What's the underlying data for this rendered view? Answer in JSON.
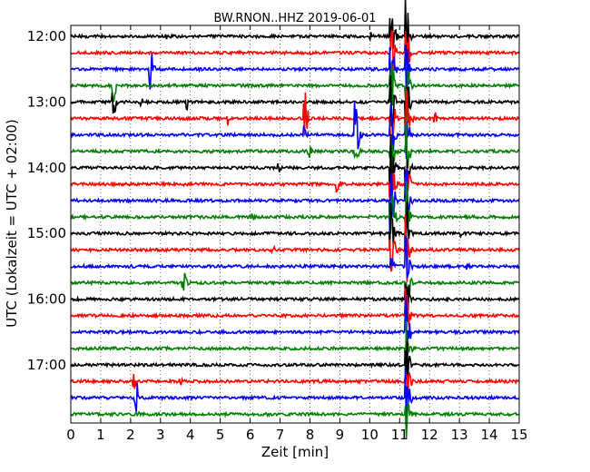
{
  "chart_data": {
    "type": "line",
    "title": "BW.RNON..HHZ 2019-06-01",
    "xlabel": "Zeit  [min]",
    "ylabel": "UTC (Lokalzeit = UTC + 02:00)",
    "xlim": [
      0,
      15
    ],
    "x_ticks": [
      "0",
      "1",
      "2",
      "3",
      "4",
      "5",
      "6",
      "7",
      "8",
      "9",
      "10",
      "11",
      "12",
      "13",
      "14",
      "15"
    ],
    "y_tick_labels": [
      "12:00",
      "13:00",
      "14:00",
      "15:00",
      "16:00",
      "17:00"
    ],
    "grid": "vertical dotted at each minute",
    "trace_colors": [
      "#000000",
      "#ff0000",
      "#0000ff",
      "#008000"
    ],
    "traces": [
      {
        "start": "12:00",
        "color": "#000000",
        "events": [
          {
            "t": 3.2,
            "a": 4
          },
          {
            "t": 10.05,
            "a": 5
          },
          {
            "t": 10.75,
            "a": 40
          },
          {
            "t": 11.25,
            "a": 40
          }
        ]
      },
      {
        "start": "12:15",
        "color": "#ff0000",
        "events": [
          {
            "t": 10.75,
            "a": 40
          },
          {
            "t": 11.25,
            "a": 40
          }
        ]
      },
      {
        "start": "12:30",
        "color": "#0000ff",
        "events": [
          {
            "t": 2.7,
            "a": 24
          },
          {
            "t": 10.75,
            "a": 40
          },
          {
            "t": 11.25,
            "a": 40
          }
        ]
      },
      {
        "start": "12:45",
        "color": "#008000",
        "events": [
          {
            "t": 1.45,
            "a": 18
          },
          {
            "t": 10.75,
            "a": 40
          },
          {
            "t": 11.25,
            "a": 40
          }
        ]
      },
      {
        "start": "13:00",
        "color": "#000000",
        "events": [
          {
            "t": 1.45,
            "a": 18
          },
          {
            "t": 2.4,
            "a": 4
          },
          {
            "t": 3.9,
            "a": 10
          },
          {
            "t": 10.75,
            "a": 40
          },
          {
            "t": 11.25,
            "a": 40
          }
        ]
      },
      {
        "start": "13:15",
        "color": "#ff0000",
        "events": [
          {
            "t": 5.25,
            "a": 12
          },
          {
            "t": 7.85,
            "a": 30
          },
          {
            "t": 10.75,
            "a": 40
          },
          {
            "t": 11.25,
            "a": 40
          },
          {
            "t": 11.4,
            "a": 10
          },
          {
            "t": 12.2,
            "a": 8
          }
        ]
      },
      {
        "start": "13:30",
        "color": "#0000ff",
        "events": [
          {
            "t": 7.85,
            "a": 12
          },
          {
            "t": 9.55,
            "a": 40
          },
          {
            "t": 10.75,
            "a": 40
          },
          {
            "t": 11.25,
            "a": 40
          }
        ]
      },
      {
        "start": "13:45",
        "color": "#008000",
        "events": [
          {
            "t": 8.0,
            "a": 8
          },
          {
            "t": 9.55,
            "a": 18
          },
          {
            "t": 10.75,
            "a": 40
          },
          {
            "t": 11.25,
            "a": 40
          }
        ]
      },
      {
        "start": "14:00",
        "color": "#000000",
        "events": [
          {
            "t": 7.0,
            "a": 5
          },
          {
            "t": 10.75,
            "a": 40
          },
          {
            "t": 11.25,
            "a": 40
          }
        ]
      },
      {
        "start": "14:15",
        "color": "#ff0000",
        "events": [
          {
            "t": 8.95,
            "a": 12
          },
          {
            "t": 10.75,
            "a": 40
          },
          {
            "t": 11.25,
            "a": 40
          }
        ]
      },
      {
        "start": "14:30",
        "color": "#0000ff",
        "events": [
          {
            "t": 10.75,
            "a": 40
          },
          {
            "t": 11.25,
            "a": 40
          }
        ]
      },
      {
        "start": "14:45",
        "color": "#008000",
        "events": [
          {
            "t": 6.1,
            "a": 4
          },
          {
            "t": 10.75,
            "a": 40
          },
          {
            "t": 11.25,
            "a": 40
          }
        ]
      },
      {
        "start": "15:00",
        "color": "#000000",
        "events": [
          {
            "t": 10.75,
            "a": 40
          },
          {
            "t": 11.25,
            "a": 40
          },
          {
            "t": 13.1,
            "a": 4
          }
        ]
      },
      {
        "start": "15:15",
        "color": "#ff0000",
        "events": [
          {
            "t": 6.8,
            "a": 4
          },
          {
            "t": 10.75,
            "a": 40
          },
          {
            "t": 11.25,
            "a": 40
          }
        ]
      },
      {
        "start": "15:30",
        "color": "#0000ff",
        "events": [
          {
            "t": 10.75,
            "a": 14
          },
          {
            "t": 11.25,
            "a": 40
          },
          {
            "t": 13.3,
            "a": 4
          }
        ]
      },
      {
        "start": "15:45",
        "color": "#008000",
        "events": [
          {
            "t": 3.8,
            "a": 14
          },
          {
            "t": 11.25,
            "a": 40
          }
        ]
      },
      {
        "start": "16:00",
        "color": "#000000",
        "events": [
          {
            "t": 11.25,
            "a": 40
          }
        ]
      },
      {
        "start": "16:15",
        "color": "#ff0000",
        "events": [
          {
            "t": 11.25,
            "a": 40
          }
        ]
      },
      {
        "start": "16:30",
        "color": "#0000ff",
        "events": [
          {
            "t": 11.25,
            "a": 40
          }
        ]
      },
      {
        "start": "16:45",
        "color": "#008000",
        "events": [
          {
            "t": 11.25,
            "a": 40
          }
        ]
      },
      {
        "start": "17:00",
        "color": "#000000",
        "events": [
          {
            "t": 11.25,
            "a": 40
          }
        ]
      },
      {
        "start": "17:15",
        "color": "#ff0000",
        "events": [
          {
            "t": 2.15,
            "a": 14
          },
          {
            "t": 3.7,
            "a": 4
          },
          {
            "t": 11.25,
            "a": 40
          }
        ]
      },
      {
        "start": "17:30",
        "color": "#0000ff",
        "events": [
          {
            "t": 2.2,
            "a": 22
          },
          {
            "t": 11.25,
            "a": 40
          }
        ]
      },
      {
        "start": "17:45",
        "color": "#008000",
        "events": [
          {
            "t": 2.2,
            "a": 10
          },
          {
            "t": 11.25,
            "a": 30
          }
        ]
      }
    ]
  }
}
